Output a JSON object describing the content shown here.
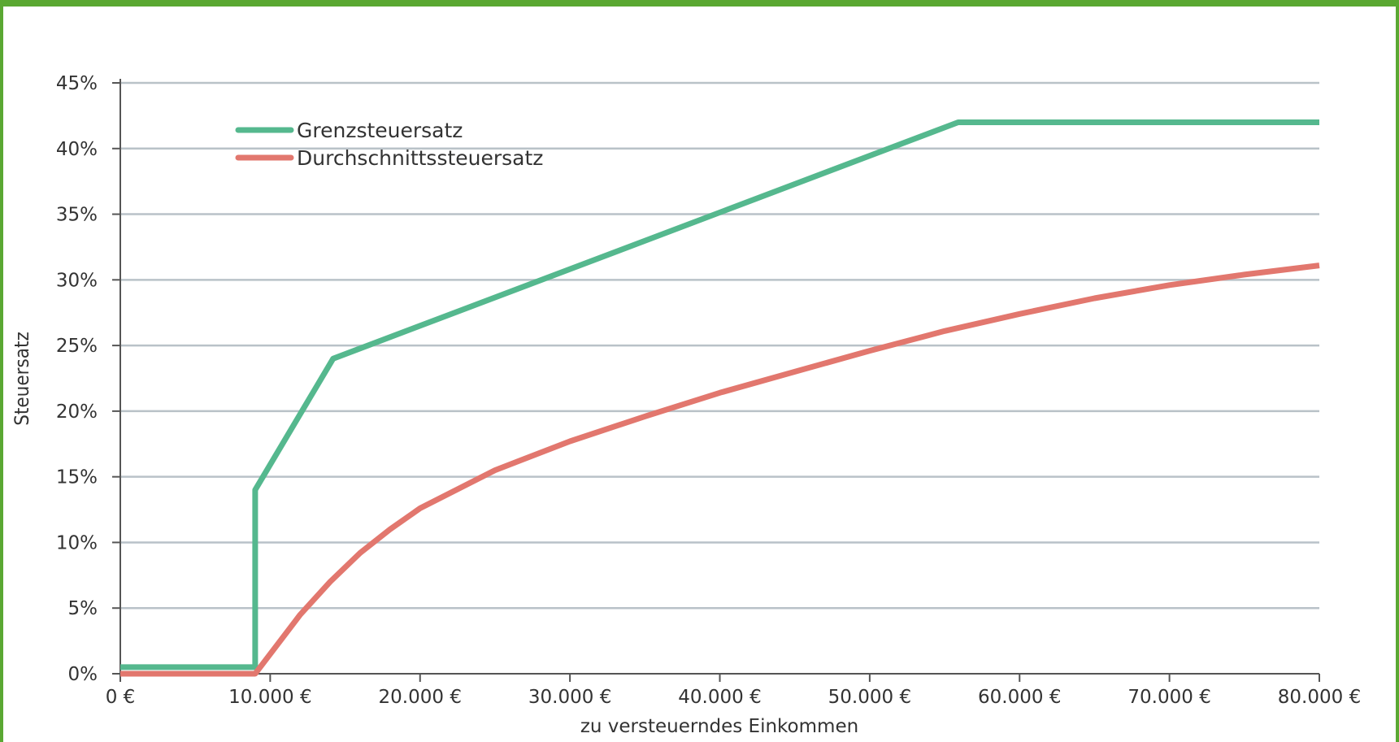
{
  "chart_data": {
    "type": "line",
    "xlabel": "zu versteuerndes Einkommen",
    "ylabel": "Steuersatz",
    "xlim": [
      0,
      80000
    ],
    "ylim": [
      0,
      45
    ],
    "x_ticks": [
      0,
      10000,
      20000,
      30000,
      40000,
      50000,
      60000,
      70000,
      80000
    ],
    "x_tick_labels": [
      "0 €",
      "10.000 €",
      "20.000 €",
      "30.000 €",
      "40.000 €",
      "50.000 €",
      "60.000 €",
      "70.000 €",
      "80.000 €"
    ],
    "y_ticks": [
      0,
      5,
      10,
      15,
      20,
      25,
      30,
      35,
      40,
      45
    ],
    "y_tick_labels": [
      "0%",
      "5%",
      "10%",
      "15%",
      "20%",
      "25%",
      "30%",
      "35%",
      "40%",
      "45%"
    ],
    "grid": true,
    "legend_position": "top-left",
    "series": [
      {
        "name": "Grenzsteuersatz",
        "color": "#55b88e",
        "x": [
          0,
          9000,
          9000,
          14200,
          55900,
          80000
        ],
        "y": [
          0.5,
          0.5,
          14,
          24,
          42,
          42
        ]
      },
      {
        "name": "Durchschnittssteuersatz",
        "color": "#e2776e",
        "x": [
          0,
          9000,
          10000,
          12000,
          14000,
          16000,
          18000,
          20000,
          25000,
          30000,
          35000,
          40000,
          45000,
          50000,
          55000,
          60000,
          65000,
          70000,
          75000,
          80000
        ],
        "y": [
          0,
          0,
          1.5,
          4.5,
          7,
          9.2,
          11,
          12.6,
          15.5,
          17.7,
          19.6,
          21.4,
          23,
          24.6,
          26.1,
          27.4,
          28.6,
          29.6,
          30.4,
          31.1
        ]
      }
    ]
  }
}
